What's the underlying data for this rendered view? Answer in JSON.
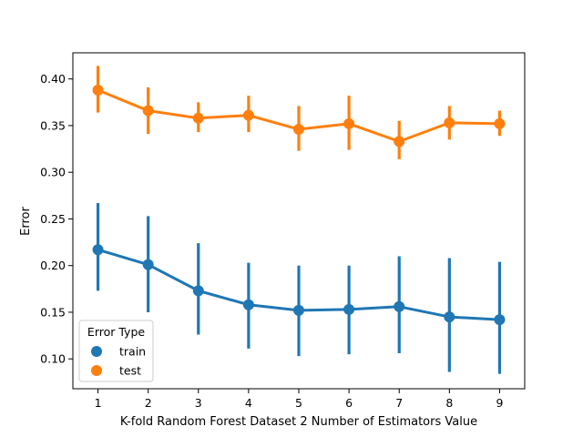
{
  "chart_data": {
    "type": "line",
    "title": "",
    "xlabel": "K-fold Random Forest Dataset 2 Number of Estimators Value",
    "ylabel": "Error",
    "categories": [
      "1",
      "2",
      "3",
      "4",
      "5",
      "6",
      "7",
      "8",
      "9"
    ],
    "ylim": [
      0.068,
      0.428
    ],
    "yticks": [
      "0.10",
      "0.15",
      "0.20",
      "0.25",
      "0.30",
      "0.35",
      "0.40"
    ],
    "grid": false,
    "legend": {
      "title": "Error Type",
      "placement": "lower-left"
    },
    "series": [
      {
        "name": "train",
        "color": "#1f77b4",
        "values": [
          0.217,
          0.201,
          0.173,
          0.158,
          0.152,
          0.153,
          0.156,
          0.145,
          0.142
        ],
        "ci_low": [
          0.173,
          0.15,
          0.126,
          0.111,
          0.103,
          0.105,
          0.106,
          0.086,
          0.084
        ],
        "ci_high": [
          0.267,
          0.253,
          0.224,
          0.203,
          0.2,
          0.2,
          0.21,
          0.208,
          0.204
        ]
      },
      {
        "name": "test",
        "color": "#ff7f0e",
        "values": [
          0.388,
          0.366,
          0.358,
          0.361,
          0.346,
          0.352,
          0.333,
          0.353,
          0.352
        ],
        "ci_low": [
          0.364,
          0.341,
          0.343,
          0.343,
          0.323,
          0.324,
          0.314,
          0.335,
          0.339
        ],
        "ci_high": [
          0.414,
          0.391,
          0.375,
          0.382,
          0.371,
          0.382,
          0.355,
          0.371,
          0.366
        ]
      }
    ]
  }
}
